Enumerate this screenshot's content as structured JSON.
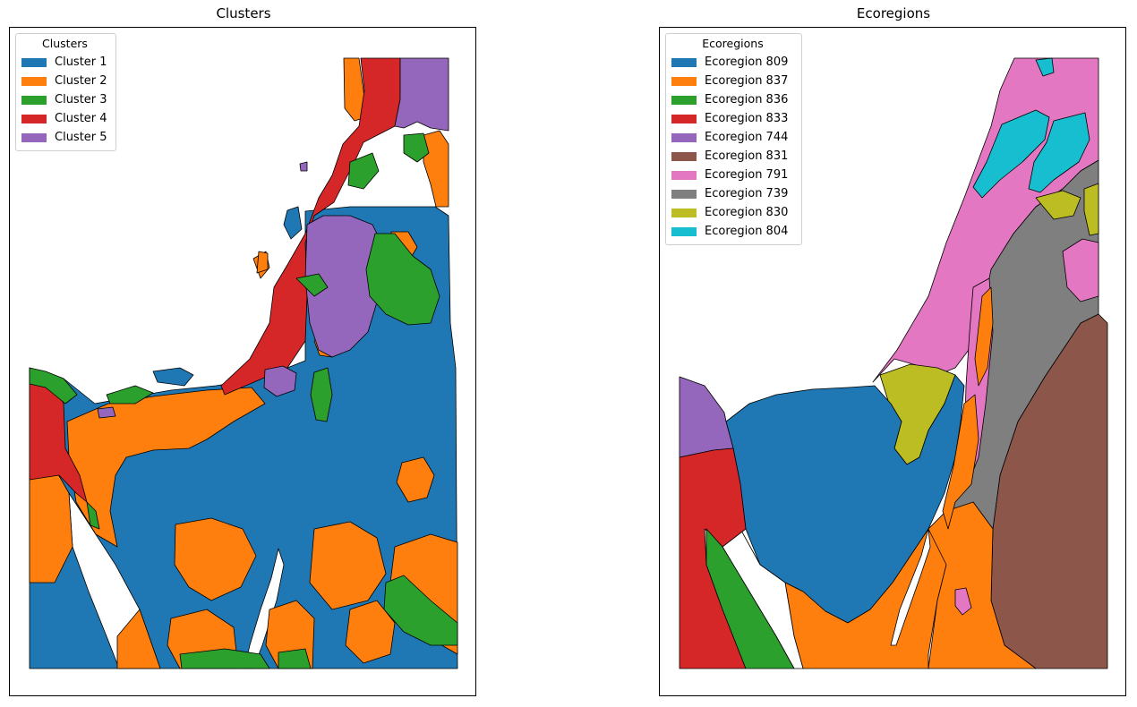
{
  "left_panel": {
    "title": "Clusters",
    "legend": {
      "title": "Clusters",
      "items": [
        {
          "label": "Cluster 1",
          "color": "#1f77b4"
        },
        {
          "label": "Cluster 2",
          "color": "#ff7f0e"
        },
        {
          "label": "Cluster 3",
          "color": "#2ca02c"
        },
        {
          "label": "Cluster 4",
          "color": "#d62728"
        },
        {
          "label": "Cluster 5",
          "color": "#9467bd"
        }
      ]
    }
  },
  "right_panel": {
    "title": "Ecoregions",
    "legend": {
      "title": "Ecoregions",
      "items": [
        {
          "label": "Ecoregion 809",
          "color": "#1f77b4"
        },
        {
          "label": "Ecoregion 837",
          "color": "#ff7f0e"
        },
        {
          "label": "Ecoregion 836",
          "color": "#2ca02c"
        },
        {
          "label": "Ecoregion 833",
          "color": "#d62728"
        },
        {
          "label": "Ecoregion 744",
          "color": "#9467bd"
        },
        {
          "label": "Ecoregion 831",
          "color": "#8c564b"
        },
        {
          "label": "Ecoregion 791",
          "color": "#e377c2"
        },
        {
          "label": "Ecoregion 739",
          "color": "#7f7f7f"
        },
        {
          "label": "Ecoregion 830",
          "color": "#bcbd22"
        },
        {
          "label": "Ecoregion 804",
          "color": "#17becf"
        }
      ]
    }
  }
}
